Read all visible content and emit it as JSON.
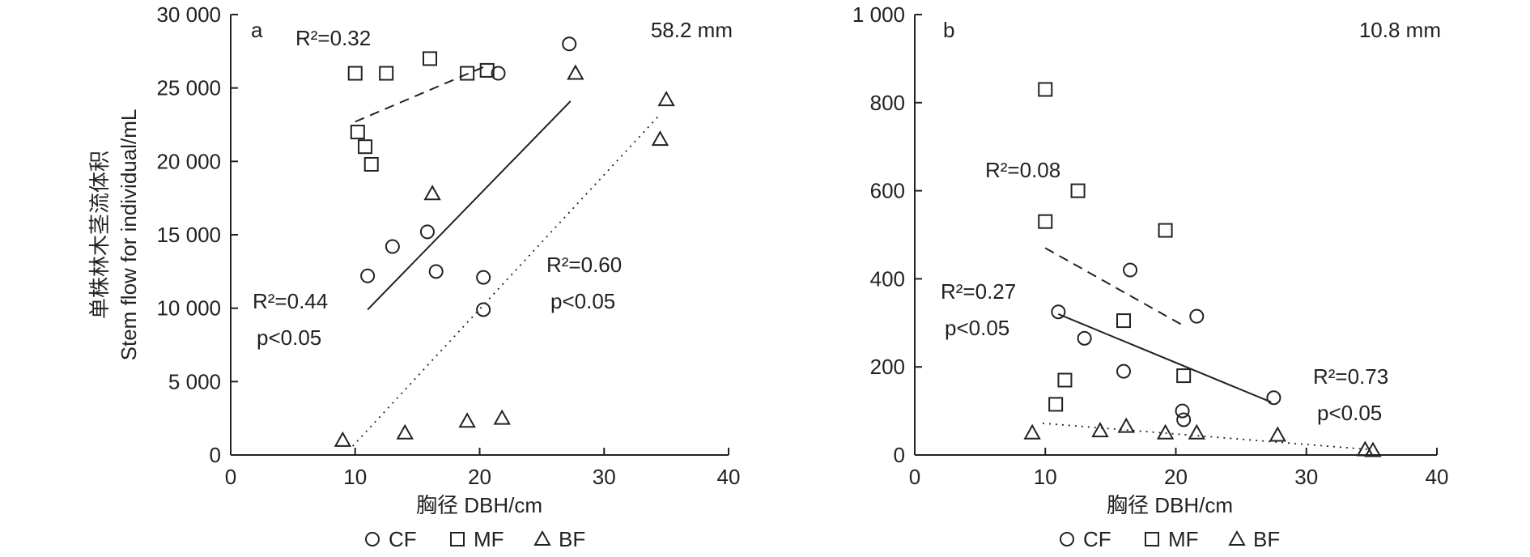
{
  "chart_data": [
    {
      "type": "scatter",
      "panel_label": "a",
      "precip_label": "58.2 mm",
      "ylabel_cn": "单株林木茎流体积",
      "ylabel_en": "Stem flow for individual/mL",
      "xlabel": "胸径 DBH/cm",
      "xlim": [
        0,
        40
      ],
      "ylim": [
        0,
        30000
      ],
      "x_ticks": [
        0,
        10,
        20,
        30,
        40
      ],
      "y_ticks": [
        0,
        5000,
        10000,
        15000,
        20000,
        25000,
        30000
      ],
      "y_tick_labels": [
        "0",
        "5 000",
        "10 000",
        "15 000",
        "20 000",
        "25 000",
        "30 000"
      ],
      "series": [
        {
          "name": "CF",
          "marker": "circle",
          "points": [
            [
              11,
              12200
            ],
            [
              13,
              14200
            ],
            [
              15.8,
              15200
            ],
            [
              16.5,
              12500
            ],
            [
              20.3,
              12100
            ],
            [
              20.3,
              9900
            ],
            [
              21.5,
              26000
            ],
            [
              27.2,
              28000
            ]
          ],
          "fit": {
            "style": "solid",
            "from": [
              11,
              9900
            ],
            "to": [
              27.3,
              24100
            ]
          },
          "r2_label": "R²=0.44",
          "p_label": "p<0.05"
        },
        {
          "name": "MF",
          "marker": "square",
          "points": [
            [
              10,
              26000
            ],
            [
              12.5,
              26000
            ],
            [
              16,
              27000
            ],
            [
              19,
              26000
            ],
            [
              20.6,
              26200
            ],
            [
              10.2,
              22000
            ],
            [
              10.8,
              21000
            ],
            [
              11.3,
              19800
            ]
          ],
          "fit": {
            "style": "dashed",
            "from": [
              10,
              22700
            ],
            "to": [
              20.8,
              26600
            ]
          },
          "r2_label": "R²=0.32",
          "p_label": ""
        },
        {
          "name": "BF",
          "marker": "triangle",
          "points": [
            [
              9,
              1000
            ],
            [
              14,
              1500
            ],
            [
              16.2,
              17800
            ],
            [
              19,
              2300
            ],
            [
              21.8,
              2500
            ],
            [
              27.7,
              26000
            ],
            [
              34.5,
              21500
            ],
            [
              35,
              24200
            ]
          ],
          "fit": {
            "style": "dotted",
            "from": [
              9.8,
              600
            ],
            "to": [
              34.5,
              23200
            ]
          },
          "r2_label": "R²=0.60",
          "p_label": "p<0.05"
        }
      ]
    },
    {
      "type": "scatter",
      "panel_label": "b",
      "precip_label": "10.8 mm",
      "xlabel": "胸径 DBH/cm",
      "xlim": [
        0,
        40
      ],
      "ylim": [
        0,
        1000
      ],
      "x_ticks": [
        0,
        10,
        20,
        30,
        40
      ],
      "y_ticks": [
        0,
        200,
        400,
        600,
        800,
        1000
      ],
      "y_tick_labels": [
        "0",
        "200",
        "400",
        "600",
        "800",
        "1 000"
      ],
      "series": [
        {
          "name": "CF",
          "marker": "circle",
          "points": [
            [
              11,
              325
            ],
            [
              13,
              265
            ],
            [
              16,
              190
            ],
            [
              16.5,
              420
            ],
            [
              20.5,
              100
            ],
            [
              20.6,
              80
            ],
            [
              21.6,
              315
            ],
            [
              27.5,
              130
            ]
          ],
          "fit": {
            "style": "solid",
            "from": [
              11,
              320
            ],
            "to": [
              27.3,
              120
            ]
          },
          "r2_label": "R²=0.27",
          "p_label": "p<0.05"
        },
        {
          "name": "MF",
          "marker": "square",
          "points": [
            [
              10,
              830
            ],
            [
              12.5,
              600
            ],
            [
              19.2,
              510
            ],
            [
              10,
              530
            ],
            [
              16,
              305
            ],
            [
              11.5,
              170
            ],
            [
              20.6,
              180
            ],
            [
              10.8,
              115
            ]
          ],
          "fit": {
            "style": "dashed",
            "from": [
              10,
              470
            ],
            "to": [
              20.8,
              290
            ]
          },
          "r2_label": "R²=0.08",
          "p_label": ""
        },
        {
          "name": "BF",
          "marker": "triangle",
          "points": [
            [
              9,
              50
            ],
            [
              14.2,
              55
            ],
            [
              16.2,
              65
            ],
            [
              19.2,
              50
            ],
            [
              21.6,
              50
            ],
            [
              27.8,
              45
            ],
            [
              34.5,
              12
            ],
            [
              35.1,
              10
            ]
          ],
          "fit": {
            "style": "dotted",
            "from": [
              9.8,
              72
            ],
            "to": [
              35,
              12
            ]
          },
          "r2_label": "R²=0.73",
          "p_label": "p<0.05"
        }
      ]
    }
  ]
}
